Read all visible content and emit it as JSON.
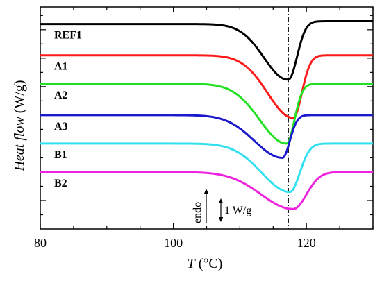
{
  "chart_data": {
    "type": "line",
    "xlabel": {
      "symbol": "T",
      "unit": " (°C)"
    },
    "ylabel": {
      "italic": "Heat flow",
      "unit": " (W/g)"
    },
    "xlim": [
      80,
      130
    ],
    "x_ticks": [
      80,
      100,
      120
    ],
    "y_ticks_unlabeled": true,
    "reference_line_x": 117.3,
    "annotations": {
      "endo": "endo",
      "scale": "1 W/g"
    },
    "series": [
      {
        "name": "REF1",
        "color": "#000000",
        "baseline_left": 7.2,
        "baseline_right": 7.3,
        "peak_x": 117.3,
        "peak_depth": 2.0,
        "left_width": 3.6,
        "right_width": 1.3
      },
      {
        "name": "A1",
        "color": "#ff1a1a",
        "baseline_left": 6.1,
        "baseline_right": 6.1,
        "peak_x": 118.0,
        "peak_depth": 2.2,
        "left_width": 3.8,
        "right_width": 1.3
      },
      {
        "name": "A2",
        "color": "#22e022",
        "baseline_left": 5.1,
        "baseline_right": 5.1,
        "peak_x": 117.0,
        "peak_depth": 2.1,
        "left_width": 4.0,
        "right_width": 1.2
      },
      {
        "name": "A3",
        "color": "#1a1acc",
        "baseline_left": 4.0,
        "baseline_right": 4.0,
        "peak_x": 116.4,
        "peak_depth": 1.5,
        "left_width": 4.2,
        "right_width": 1.1
      },
      {
        "name": "B1",
        "color": "#33e0f0",
        "baseline_left": 3.0,
        "baseline_right": 3.0,
        "peak_x": 117.5,
        "peak_depth": 1.7,
        "left_width": 4.2,
        "right_width": 1.5
      },
      {
        "name": "B2",
        "color": "#ee22dd",
        "baseline_left": 2.0,
        "baseline_right": 2.0,
        "peak_x": 118.0,
        "peak_depth": 1.3,
        "left_width": 4.8,
        "right_width": 2.0
      }
    ]
  }
}
